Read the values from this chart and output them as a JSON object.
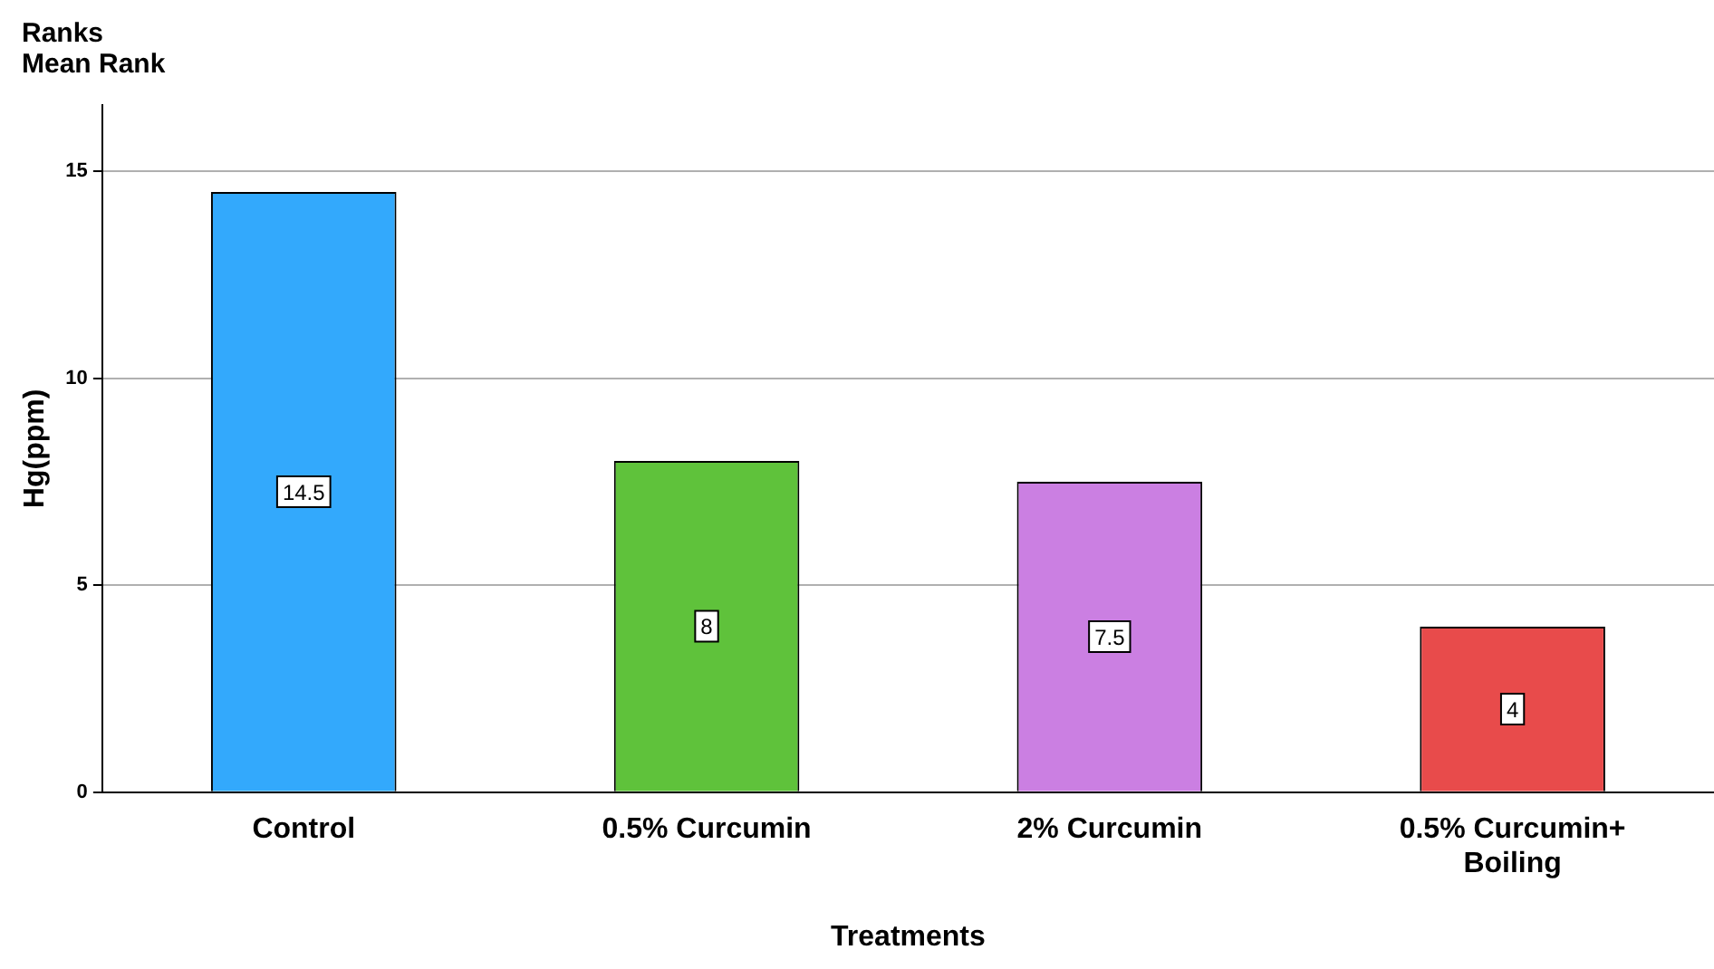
{
  "chart_data": {
    "type": "bar",
    "title": "Ranks",
    "subtitle": "Mean Rank",
    "xlabel": "Treatments",
    "ylabel": "Hg(ppm)",
    "categories": [
      "Control",
      "0.5% Curcumin",
      "2% Curcumin",
      "0.5% Curcumin+ Boiling"
    ],
    "values": [
      14.5,
      8,
      7.5,
      4
    ],
    "colors": [
      "#33a9fc",
      "#5fc23b",
      "#cb7fe2",
      "#e84b4b"
    ],
    "ylim": [
      0,
      16.6
    ],
    "yticks": [
      0,
      5,
      10,
      15
    ],
    "grid": "y",
    "data_labels": true,
    "legend": false
  }
}
